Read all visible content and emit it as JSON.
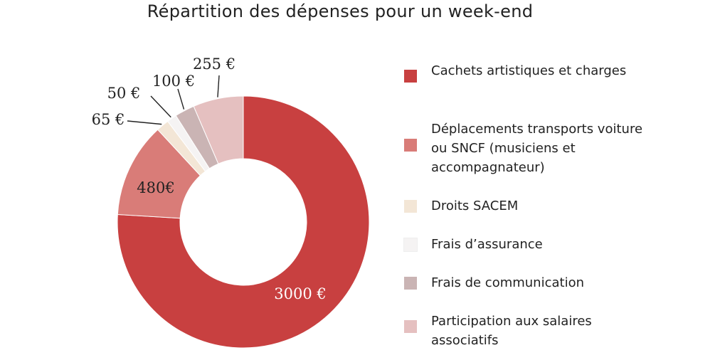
{
  "chart_data": {
    "type": "pie",
    "title": "Répartition des dépenses pour un week-end",
    "donut": true,
    "legend_position": "right",
    "slices": [
      {
        "label": "Cachets artistiques et charges",
        "value": 3000,
        "value_label": "3000 €",
        "color": "#c84040"
      },
      {
        "label": "Déplacements transports voiture ou SNCF (musiciens et accompagnateur)",
        "value": 480,
        "value_label": "480€",
        "color": "#d97c78"
      },
      {
        "label": "Droits SACEM",
        "value": 65,
        "value_label": "65 €",
        "color": "#f3e6d6"
      },
      {
        "label": "Frais d’assurance",
        "value": 50,
        "value_label": "50 €",
        "color": "#f5f3f3"
      },
      {
        "label": "Frais de communication",
        "value": 100,
        "value_label": "100 €",
        "color": "#cab4b4"
      },
      {
        "label": "Participation aux salaires associatifs",
        "value": 255,
        "value_label": "255 €",
        "color": "#e5c0c0"
      }
    ]
  }
}
